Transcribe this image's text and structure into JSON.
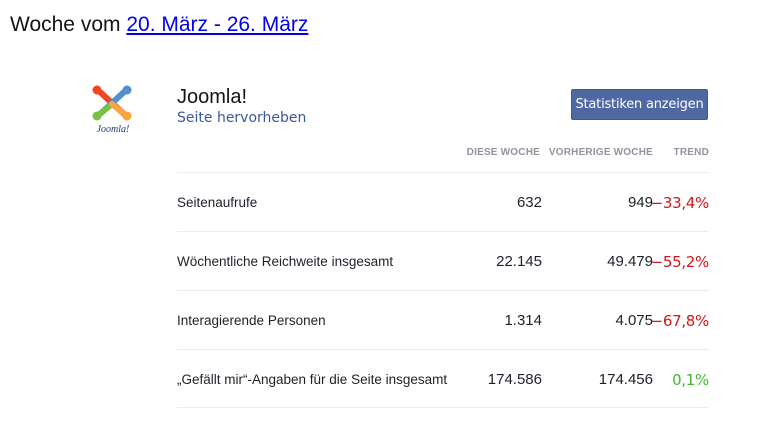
{
  "header": {
    "prefix": "Woche vom",
    "date_range": "20. März - 26. März"
  },
  "page": {
    "name": "Joomla!",
    "promote_link": "Seite hervorheben",
    "logo_text": "Joomla!",
    "stats_button": "Statistiken anzeigen"
  },
  "columns": {
    "this_week": "DIESE WOCHE",
    "previous_week": "VORHERIGE WOCHE",
    "trend": "TREND"
  },
  "rows": [
    {
      "label": "Seitenaufrufe",
      "this_week": "632",
      "previous_week": "949",
      "trend": "−33,4%",
      "direction": "down"
    },
    {
      "label": "Wöchentliche Reichweite insgesamt",
      "this_week": "22.145",
      "previous_week": "49.479",
      "trend": "−55,2%",
      "direction": "down"
    },
    {
      "label": "Interagierende Personen",
      "this_week": "1.314",
      "previous_week": "4.075",
      "trend": "−67,8%",
      "direction": "down"
    },
    {
      "label": "„Gefällt mir“-Angaben für die Seite insgesamt",
      "this_week": "174.586",
      "previous_week": "174.456",
      "trend": "0,1%",
      "direction": "up"
    }
  ],
  "colors": {
    "link": "#0000ee",
    "brand": "#3b5998",
    "button": "#4e69a2",
    "trend_down": "#d0191c",
    "trend_up": "#42b72a"
  }
}
